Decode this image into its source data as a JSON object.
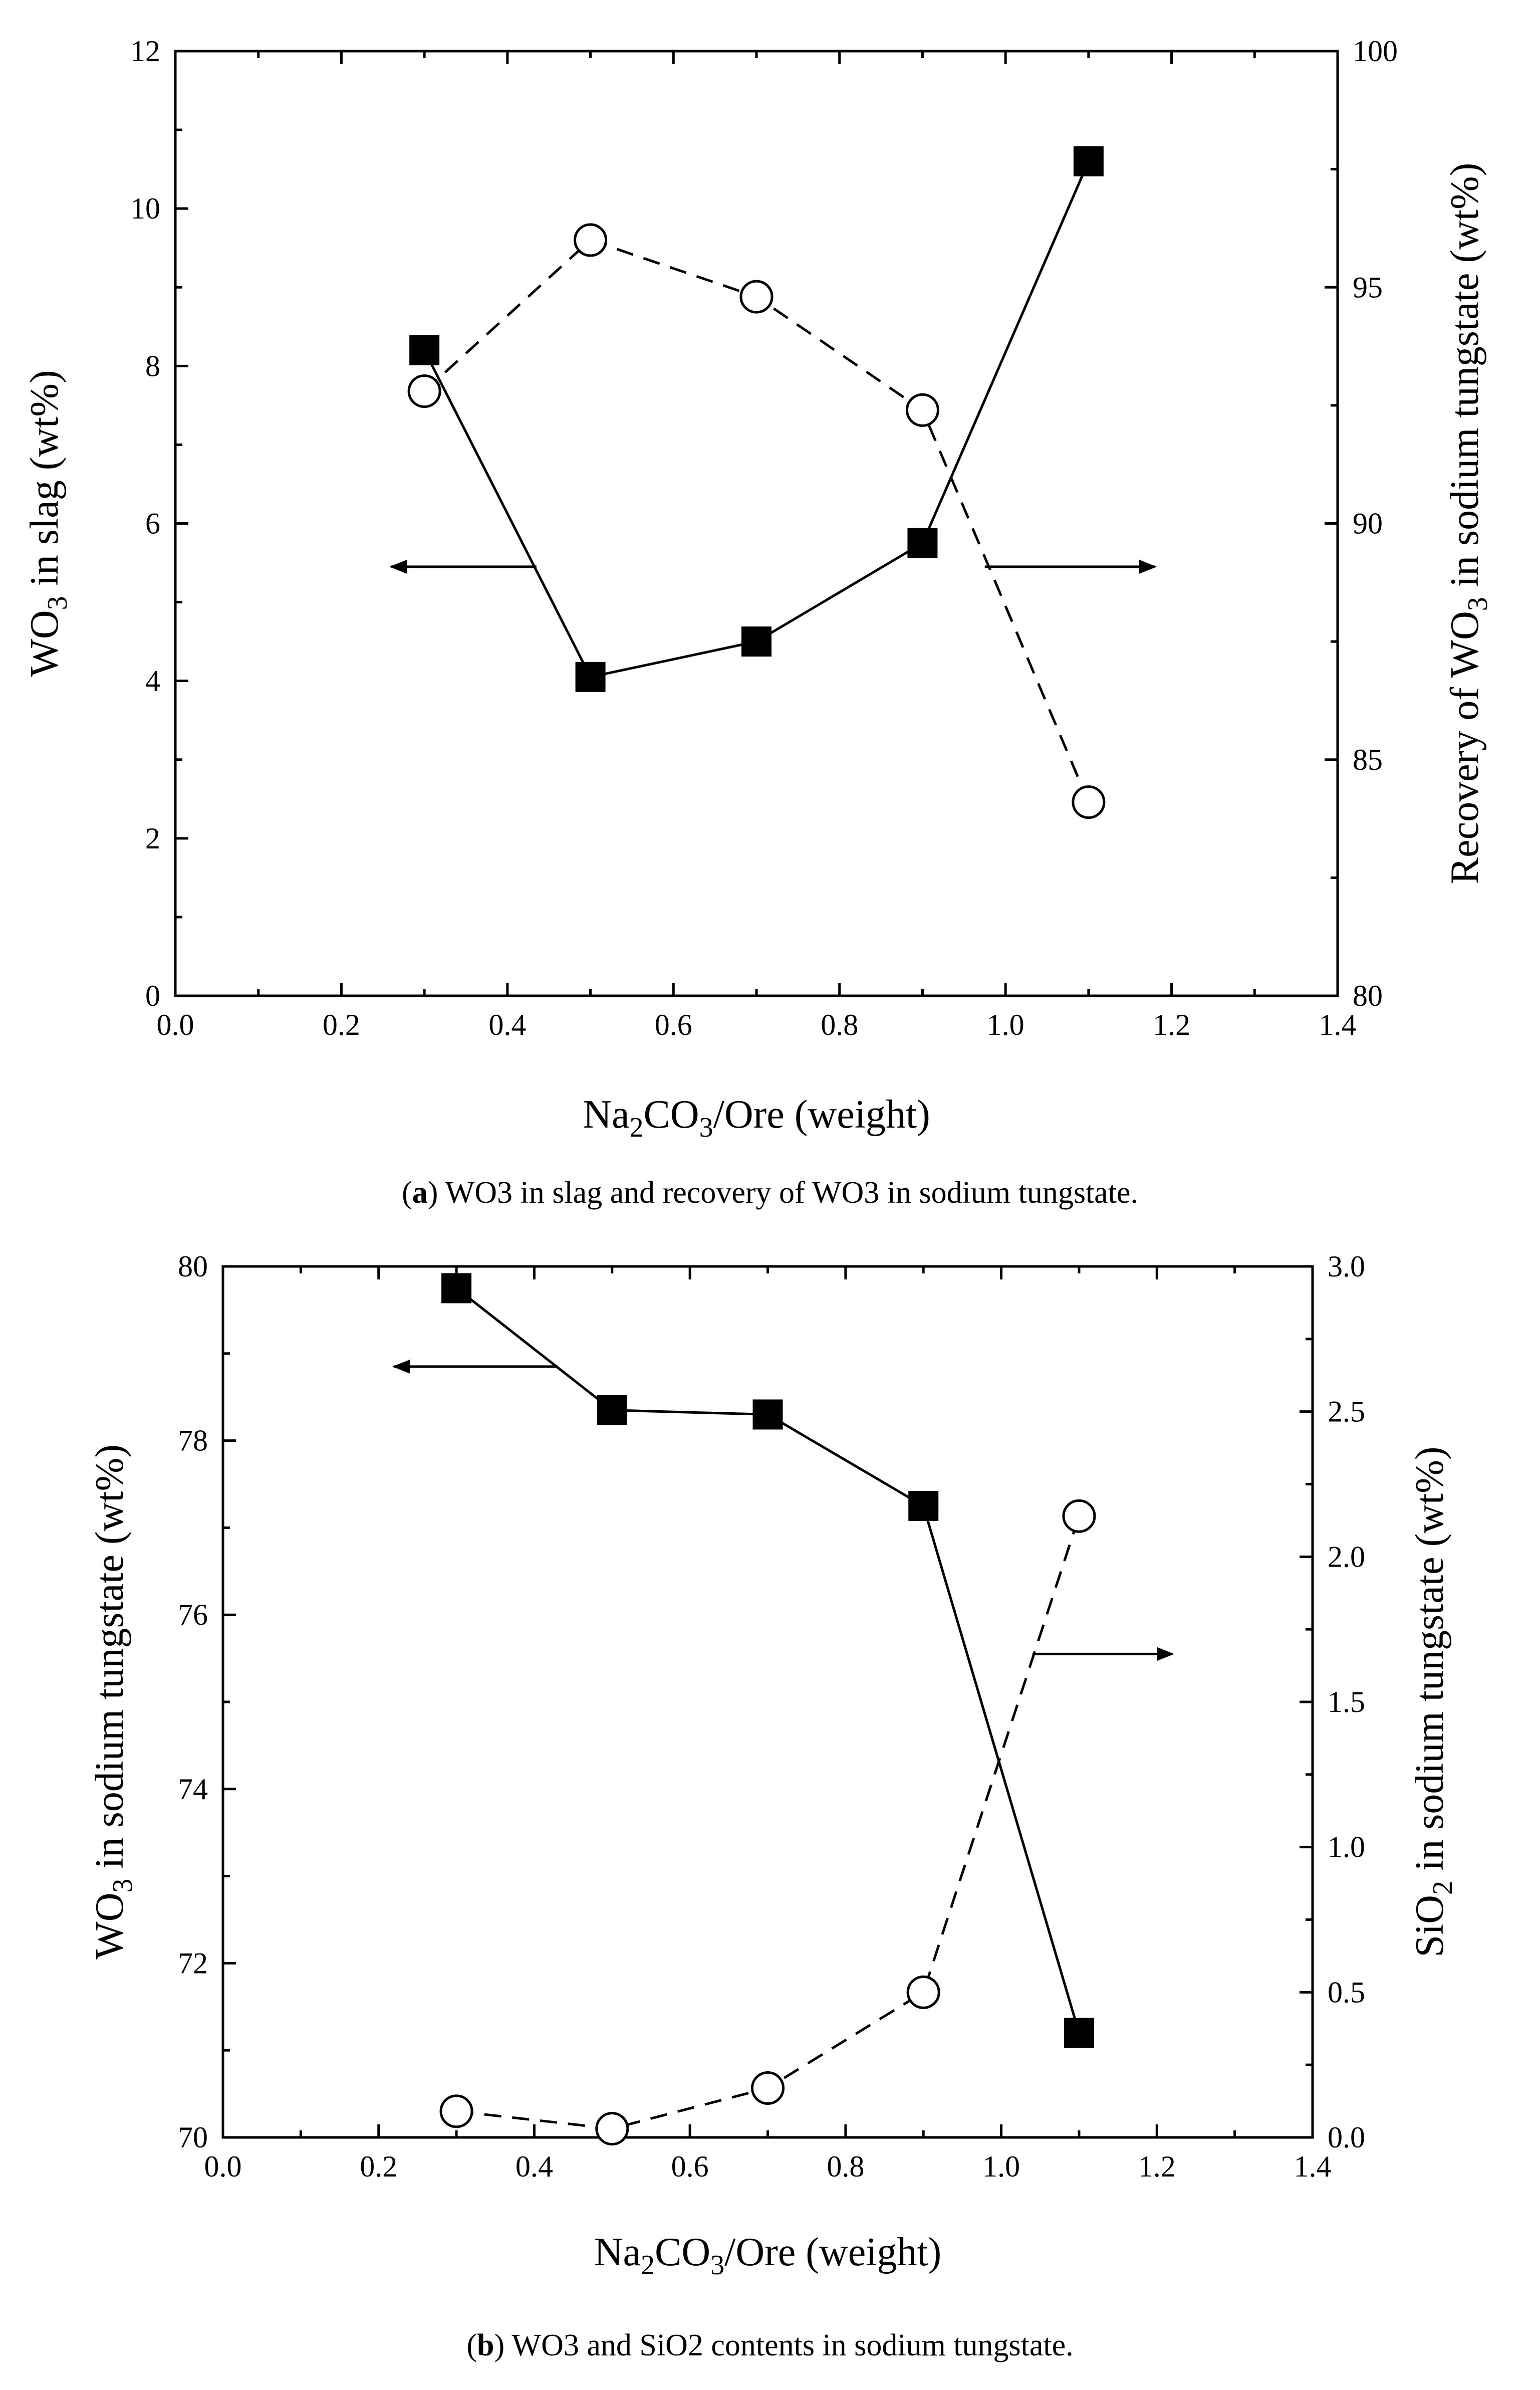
{
  "colors": {
    "ink": "#000000",
    "background": "#ffffff"
  },
  "chart_data": [
    {
      "id": "a",
      "type": "line",
      "x": [
        0.3,
        0.5,
        0.7,
        0.9,
        1.1
      ],
      "xlabel": {
        "main": "Na",
        "sub1": "2",
        "mid": "CO",
        "sub2": "3",
        "tail": "/Ore (weight)"
      },
      "xlim": [
        0.0,
        1.4
      ],
      "xticks": [
        "0.0",
        "0.2",
        "0.4",
        "0.6",
        "0.8",
        "1.0",
        "1.2",
        "1.4"
      ],
      "ylabel_left": {
        "main": "WO",
        "sub": "3",
        "tail": " in slag (wt%)"
      },
      "ylim_left": [
        0,
        12
      ],
      "yticks_left": [
        "0",
        "2",
        "4",
        "6",
        "8",
        "10",
        "12"
      ],
      "ylabel_right": {
        "main": "Recovery of WO",
        "sub": "3",
        "tail": " in sodium tungstate (wt%)"
      },
      "ylim_right": [
        80,
        100
      ],
      "yticks_right": [
        "80",
        "85",
        "90",
        "95",
        "100"
      ],
      "series": [
        {
          "name": "WO3 in slag",
          "axis": "left",
          "marker": "filled-square",
          "line": "solid",
          "values": [
            8.2,
            4.05,
            4.5,
            5.75,
            10.6
          ]
        },
        {
          "name": "Recovery of WO3 in sodium tungstate",
          "axis": "right",
          "marker": "open-circle",
          "line": "dashed",
          "values": [
            92.8,
            96.0,
            94.8,
            92.4,
            84.1
          ]
        }
      ],
      "annotations": [
        {
          "type": "arrow",
          "direction": "left",
          "axis": "left",
          "y": 5.45,
          "x_from": 0.435,
          "x_to": 0.26
        },
        {
          "type": "arrow",
          "direction": "right",
          "axis": "left",
          "y": 5.45,
          "x_from": 0.975,
          "x_to": 1.18
        }
      ],
      "caption": {
        "label": "(a)",
        "label_open": "(",
        "label_letter": "a",
        "label_close": ")",
        "text": " WO3 in slag and recovery of WO3 in sodium tungstate."
      }
    },
    {
      "id": "b",
      "type": "line",
      "x": [
        0.3,
        0.5,
        0.7,
        0.9,
        1.1
      ],
      "xlabel": {
        "main": "Na",
        "sub1": "2",
        "mid": "CO",
        "sub2": "3",
        "tail": "/Ore (weight)"
      },
      "xlim": [
        0.0,
        1.4
      ],
      "xticks": [
        "0.0",
        "0.2",
        "0.4",
        "0.6",
        "0.8",
        "1.0",
        "1.2",
        "1.4"
      ],
      "ylabel_left": {
        "main": "WO",
        "sub": "3",
        "tail": " in sodium tungstate (wt%)"
      },
      "ylim_left": [
        70,
        80
      ],
      "yticks_left": [
        "70",
        "72",
        "74",
        "76",
        "78",
        "80"
      ],
      "ylabel_right": {
        "main": "SiO",
        "sub": "2",
        "tail": " in sodium tungstate (wt%)"
      },
      "ylim_right": [
        0.0,
        3.0
      ],
      "yticks_right": [
        "0.0",
        "0.5",
        "1.0",
        "1.5",
        "2.0",
        "2.5",
        "3.0"
      ],
      "series": [
        {
          "name": "WO3 in sodium tungstate",
          "axis": "left",
          "marker": "filled-square",
          "line": "solid",
          "values": [
            79.75,
            78.35,
            78.3,
            77.25,
            71.2
          ]
        },
        {
          "name": "SiO2 in sodium tungstate",
          "axis": "right",
          "marker": "open-circle",
          "line": "dashed",
          "values": [
            0.09,
            0.03,
            0.17,
            0.5,
            2.14
          ]
        }
      ],
      "annotations": [
        {
          "type": "arrow",
          "direction": "left",
          "axis": "left",
          "y": 78.85,
          "x_from": 0.43,
          "x_to": 0.22
        },
        {
          "type": "arrow",
          "direction": "right",
          "axis": "left",
          "y": 75.55,
          "x_from": 1.04,
          "x_to": 1.22
        }
      ],
      "caption": {
        "label": "(b)",
        "label_open": "(",
        "label_letter": "b",
        "label_close": ")",
        "text": " WO3 and SiO2 contents in sodium tungstate."
      }
    }
  ]
}
